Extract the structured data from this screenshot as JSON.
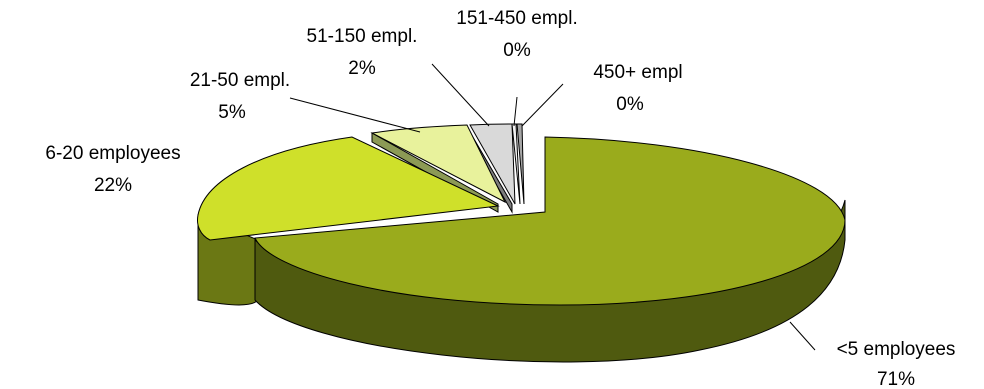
{
  "chart_data": {
    "type": "pie",
    "style": "3d-exploded",
    "title": "",
    "slices": [
      {
        "label": "<5 employees",
        "value": 71,
        "value_label": "71%",
        "color": "#9aab1c"
      },
      {
        "label": "6-20 employees",
        "value": 22,
        "value_label": "22%",
        "color": "#cfe02a"
      },
      {
        "label": "21-50 empl.",
        "value": 5,
        "value_label": "5%",
        "color": "#e8f29c"
      },
      {
        "label": "51-150 empl.",
        "value": 2,
        "value_label": "2%",
        "color": "#d9d9d9"
      },
      {
        "label": "151-450 empl.",
        "value": 0,
        "value_label": "0%",
        "color": "#f2f2f2"
      },
      {
        "label": "450+ empl",
        "value": 0,
        "value_label": "0%",
        "color": "#a6a6a6"
      }
    ]
  }
}
